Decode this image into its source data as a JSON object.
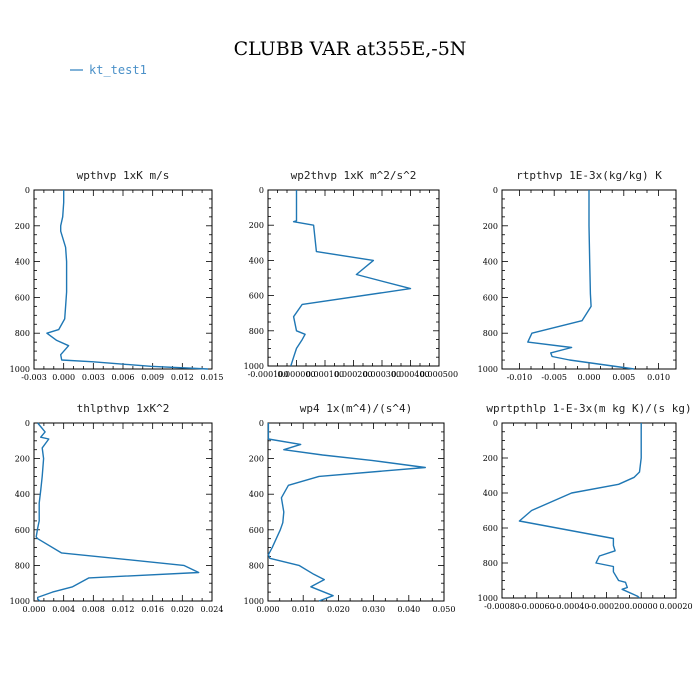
{
  "title": "CLUBB VAR at355E,-5N",
  "legend": {
    "label": "kt_test1",
    "color": "#4a90c8"
  },
  "line_color": "#1f77b4",
  "chart_data": [
    {
      "type": "line",
      "title": "wpthvp  1xK m/s",
      "series": [
        {
          "name": "kt_test1"
        }
      ],
      "xlim": [
        -0.003,
        0.015
      ],
      "xticks": [
        -0.003,
        0.0,
        0.003,
        0.006,
        0.009,
        0.012,
        0.015
      ],
      "xtick_labels": [
        "-0.003",
        "0.000",
        "0.003",
        "0.006",
        "0.009",
        "0.012",
        "0.015"
      ],
      "ylim": [
        0,
        1000
      ],
      "yticks": [
        0,
        200,
        400,
        600,
        800,
        1000
      ],
      "ytick_labels": [
        "0",
        "200",
        "400",
        "600",
        "800",
        "1000"
      ],
      "y_inverted": true,
      "x": [
        0.0,
        0.0,
        -0.0001,
        -0.0003,
        -0.0003,
        0.0002,
        0.0003,
        0.0003,
        0.0003,
        0.0002,
        0.0001,
        -0.0005,
        -0.0017,
        -0.0007,
        0.0005,
        -0.0003,
        -0.0002,
        0.003,
        0.0088,
        0.0146
      ],
      "y": [
        0,
        70,
        150,
        200,
        230,
        320,
        400,
        500,
        570,
        650,
        720,
        780,
        800,
        840,
        870,
        920,
        950,
        960,
        985,
        1000
      ]
    },
    {
      "type": "line",
      "title": "wp2thvp  1xK m^2/s^2",
      "series": [
        {
          "name": "kt_test1"
        }
      ],
      "xlim": [
        -0.0001,
        0.0005
      ],
      "xticks": [
        -0.0001,
        0.0,
        0.0001,
        0.0002,
        0.0003,
        0.0004,
        0.0005
      ],
      "xtick_labels": [
        "-0.000100",
        "0.000000",
        "0.000100",
        "0.000200",
        "0.000300",
        "0.000400",
        "0.000500"
      ],
      "ylim": [
        0,
        1000
      ],
      "yticks": [
        0,
        200,
        400,
        600,
        800,
        1000
      ],
      "ytick_labels": [
        "0",
        "200",
        "400",
        "600",
        "800",
        "1000"
      ],
      "y_inverted": true,
      "x": [
        0.0,
        0.0,
        0.0,
        0.0,
        -1e-05,
        6e-05,
        7e-05,
        0.00027,
        0.00021,
        0.0004,
        2e-05,
        -1e-05,
        0.0,
        3e-05,
        2e-05,
        0.0,
        -1e-05,
        -2e-05
      ],
      "y": [
        0,
        100,
        150,
        175,
        180,
        200,
        350,
        400,
        480,
        560,
        650,
        720,
        800,
        820,
        850,
        900,
        950,
        1000
      ]
    },
    {
      "type": "line",
      "title": "rtpthvp  1E-3x(kg/kg) K",
      "series": [
        {
          "name": "kt_test1"
        }
      ],
      "xlim": [
        -0.0125,
        0.0125
      ],
      "xticks": [
        -0.01,
        -0.005,
        0.0,
        0.005,
        0.01
      ],
      "xtick_labels": [
        "-0.010",
        "-0.005",
        "0.000",
        "0.005",
        "0.010"
      ],
      "ylim": [
        0,
        1000
      ],
      "yticks": [
        0,
        200,
        400,
        600,
        800,
        1000
      ],
      "ytick_labels": [
        "0",
        "200",
        "400",
        "600",
        "800",
        "1000"
      ],
      "y_inverted": true,
      "x": [
        0.0,
        0.0,
        0.0001,
        0.0002,
        0.0003,
        -0.001,
        -0.0082,
        -0.0088,
        -0.0025,
        -0.0055,
        -0.0053,
        -0.0028,
        0.0065
      ],
      "y": [
        0,
        200,
        400,
        580,
        650,
        730,
        800,
        850,
        880,
        910,
        930,
        950,
        1000
      ]
    },
    {
      "type": "line",
      "title": "thlpthvp  1xK^2",
      "series": [
        {
          "name": "kt_test1"
        }
      ],
      "xlim": [
        0.0,
        0.024
      ],
      "xticks": [
        0.0,
        0.004,
        0.008,
        0.012,
        0.016,
        0.02,
        0.024
      ],
      "xtick_labels": [
        "0.000",
        "0.004",
        "0.008",
        "0.012",
        "0.016",
        "0.020",
        "0.024"
      ],
      "ylim": [
        0,
        1000
      ],
      "yticks": [
        0,
        200,
        400,
        600,
        800,
        1000
      ],
      "ytick_labels": [
        "0",
        "200",
        "400",
        "600",
        "800",
        "1000"
      ],
      "y_inverted": true,
      "x": [
        0.0005,
        0.0015,
        0.0009,
        0.002,
        0.0011,
        0.0013,
        0.0011,
        0.0009,
        0.0007,
        0.0007,
        0.0005,
        0.0003,
        0.0005,
        0.0037,
        0.0202,
        0.0222,
        0.0074,
        0.0052,
        0.0025,
        0.0005,
        0.0005,
        0.0008
      ],
      "y": [
        0,
        50,
        80,
        90,
        140,
        200,
        300,
        380,
        450,
        550,
        590,
        640,
        650,
        730,
        800,
        840,
        870,
        920,
        950,
        980,
        990,
        1000
      ]
    },
    {
      "type": "line",
      "title": "wp4  1x(m^4)/(s^4)",
      "series": [
        {
          "name": "kt_test1"
        }
      ],
      "xlim": [
        0.0,
        0.05
      ],
      "xticks": [
        0.0,
        0.01,
        0.02,
        0.03,
        0.04,
        0.05
      ],
      "xtick_labels": [
        "0.000",
        "0.010",
        "0.020",
        "0.030",
        "0.040",
        "0.050"
      ],
      "ylim": [
        0,
        1000
      ],
      "yticks": [
        0,
        200,
        400,
        600,
        800,
        1000
      ],
      "ytick_labels": [
        "0",
        "200",
        "400",
        "600",
        "800",
        "1000"
      ],
      "y_inverted": true,
      "x": [
        0.0001,
        0.0001,
        0.0093,
        0.0045,
        0.0155,
        0.0295,
        0.0447,
        0.0145,
        0.0058,
        0.0038,
        0.0045,
        0.0042,
        0.0035,
        0.0012,
        0.0001,
        0.0005,
        0.0088,
        0.013,
        0.016,
        0.0122,
        0.0185,
        0.0145
      ],
      "y": [
        0,
        90,
        120,
        150,
        180,
        210,
        250,
        300,
        350,
        420,
        500,
        560,
        600,
        700,
        740,
        760,
        800,
        850,
        880,
        920,
        970,
        1000
      ]
    },
    {
      "type": "line",
      "title": "wprtpthlp  1-E-3x(m kg K)/(s kg)",
      "series": [
        {
          "name": "kt_test1"
        }
      ],
      "xlim": [
        -0.0008,
        0.0002
      ],
      "xticks": [
        -0.0008,
        -0.0006,
        -0.0004,
        -0.0002,
        0.0,
        0.0002
      ],
      "xtick_labels": [
        "-0.00080",
        "-0.00060",
        "-0.00040",
        "-0.00020",
        "0.00000",
        "0.00020"
      ],
      "ylim": [
        0,
        1000
      ],
      "yticks": [
        0,
        200,
        400,
        600,
        800,
        1000
      ],
      "ytick_labels": [
        "0",
        "200",
        "400",
        "600",
        "800",
        "1000"
      ],
      "y_inverted": true,
      "x": [
        0.0,
        0.0,
        -1e-05,
        -4e-05,
        -0.00013,
        -0.0004,
        -0.00063,
        -0.0007,
        -0.00016,
        -0.00016,
        -0.00015,
        -0.00024,
        -0.00026,
        -0.00016,
        -0.00016,
        -0.00013,
        -9e-05,
        -8e-05,
        -0.00011,
        -2e-05,
        -1e-05
      ],
      "y": [
        0,
        200,
        280,
        310,
        350,
        400,
        500,
        560,
        660,
        700,
        730,
        760,
        800,
        820,
        850,
        900,
        910,
        940,
        950,
        990,
        1000
      ]
    }
  ]
}
